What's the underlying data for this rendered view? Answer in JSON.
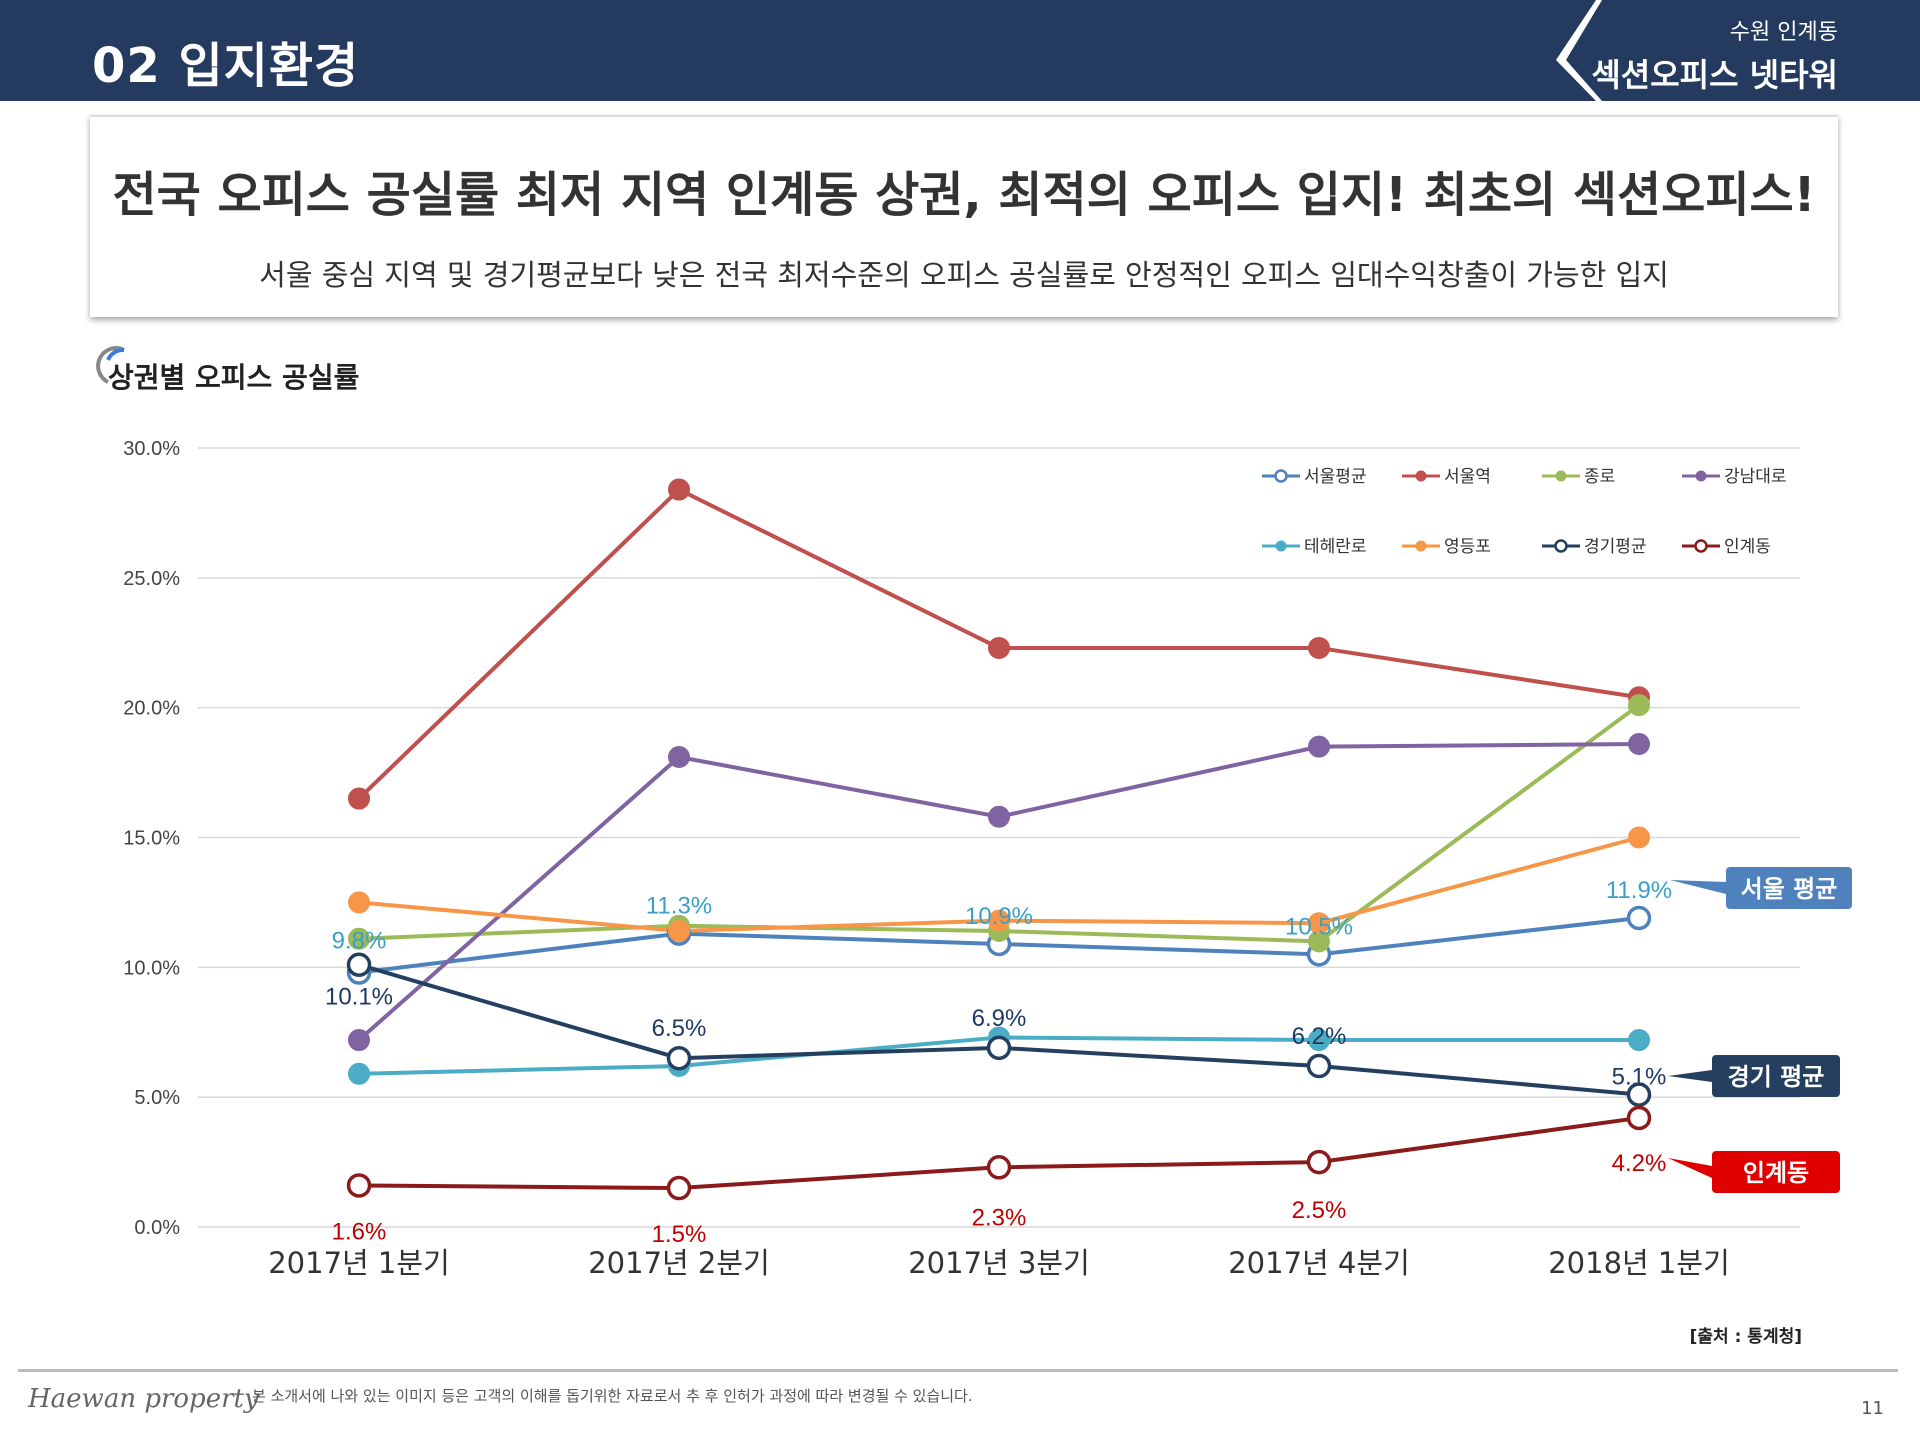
{
  "header": {
    "section_title": "02 입지환경",
    "project_sub": "수원 인계동",
    "project_name": "섹션오피스 넷타워"
  },
  "headline": {
    "title": "전국 오피스 공실률 최저 지역 인계동 상권, 최적의 오피스 입지! 최초의 섹션오피스!",
    "subtitle": "서울 중심 지역 및 경기평균보다 낮은 전국 최저수준의 오피스 공실률로 안정적인 오피스 임대수익창출이 가능한 입지"
  },
  "chart_title": "상권별 오피스 공실률",
  "source": "[출처 : 통계청]",
  "footer": {
    "logo": "Haewan property",
    "note": "본 소개서에 나와 있는 이미지 등은 고객의 이해를 돕기위한 자료로서 추 후 인허가 과정에 따라 변경될 수 있습니다.",
    "page_number": "11"
  },
  "chart_data": {
    "type": "line",
    "categories": [
      "2017년 1분기",
      "2017년 2분기",
      "2017년 3분기",
      "2017년 4분기",
      "2018년 1분기"
    ],
    "y_ticks": [
      "0.0%",
      "5.0%",
      "10.0%",
      "15.0%",
      "20.0%",
      "25.0%",
      "30.0%"
    ],
    "ylim": [
      0,
      30
    ],
    "grid": true,
    "legend_position": "top-right",
    "series": [
      {
        "name": "서울평균",
        "color": "#4f81bd",
        "hollow": true,
        "values": [
          9.8,
          11.3,
          10.9,
          10.5,
          11.9
        ],
        "labels": [
          "9.8%",
          "11.3%",
          "10.9%",
          "10.5%",
          "11.9%"
        ],
        "label_color": "#3aa0c8"
      },
      {
        "name": "서울역",
        "color": "#c0504d",
        "hollow": false,
        "values": [
          16.5,
          28.4,
          22.3,
          22.3,
          20.4
        ]
      },
      {
        "name": "종로",
        "color": "#9bbb59",
        "hollow": false,
        "values": [
          11.1,
          11.6,
          11.4,
          11.0,
          20.1
        ]
      },
      {
        "name": "강남대로",
        "color": "#8064a2",
        "hollow": false,
        "values": [
          7.2,
          18.1,
          15.8,
          18.5,
          18.6
        ]
      },
      {
        "name": "테헤란로",
        "color": "#4bacc6",
        "hollow": false,
        "values": [
          5.9,
          6.2,
          7.3,
          7.2,
          7.2
        ]
      },
      {
        "name": "영등포",
        "color": "#f79646",
        "hollow": false,
        "values": [
          12.5,
          11.4,
          11.8,
          11.7,
          15.0
        ]
      },
      {
        "name": "경기평균",
        "color": "#243f60",
        "hollow": true,
        "values": [
          10.1,
          6.5,
          6.9,
          6.2,
          5.1
        ],
        "labels": [
          "10.1%",
          "6.5%",
          "6.9%",
          "6.2%",
          "5.1%"
        ],
        "label_color": "#1f3864"
      },
      {
        "name": "인계동",
        "color": "#8b1a1a",
        "hollow": true,
        "values": [
          1.6,
          1.5,
          2.3,
          2.5,
          4.2
        ],
        "labels": [
          "1.6%",
          "1.5%",
          "2.3%",
          "2.5%",
          "4.2%"
        ],
        "label_color": "#c00000"
      }
    ],
    "callouts": [
      {
        "series": "서울평균",
        "text": "서울 평균",
        "color": "#4f81bd"
      },
      {
        "series": "경기평균",
        "text": "경기 평균",
        "color": "#243f60"
      },
      {
        "series": "인계동",
        "text": "인계동",
        "color": "#e00000"
      }
    ]
  }
}
